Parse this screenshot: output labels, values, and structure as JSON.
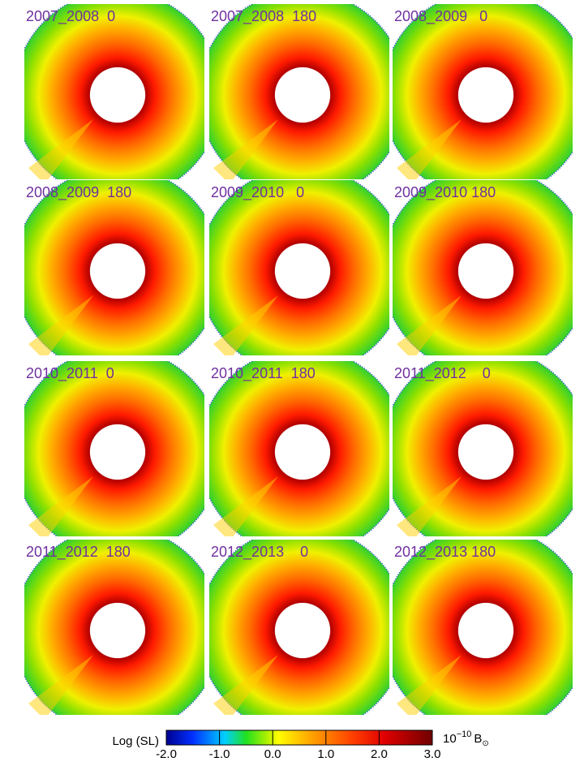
{
  "panels": [
    {
      "label": "2007_2008  0"
    },
    {
      "label": "2007_2008  180"
    },
    {
      "label": "2008_2009   0"
    },
    {
      "label": "2008_2009  180"
    },
    {
      "label": "2009_2010   0"
    },
    {
      "label": "2009_2010 180"
    },
    {
      "label": "2010_2011  0"
    },
    {
      "label": "2010_2011  180"
    },
    {
      "label": "2011_2012    0"
    },
    {
      "label": "2011_2012  180"
    },
    {
      "label": "2012_2013    0"
    },
    {
      "label": "2012_2013 180"
    }
  ],
  "colorbar": {
    "label": "Log (SL)",
    "unit_base": "10",
    "unit_exponent": "−10",
    "unit_symbol": "B",
    "unit_subscript": "⊙",
    "lim": [
      -2,
      3
    ],
    "ticks": [
      {
        "value": -2,
        "label": "-2.0"
      },
      {
        "value": -1,
        "label": "-1.0"
      },
      {
        "value": 0,
        "label": "0.0"
      },
      {
        "value": 1,
        "label": "1.0"
      },
      {
        "value": 2,
        "label": "2.0"
      },
      {
        "value": 3,
        "label": "3.0"
      }
    ]
  }
}
